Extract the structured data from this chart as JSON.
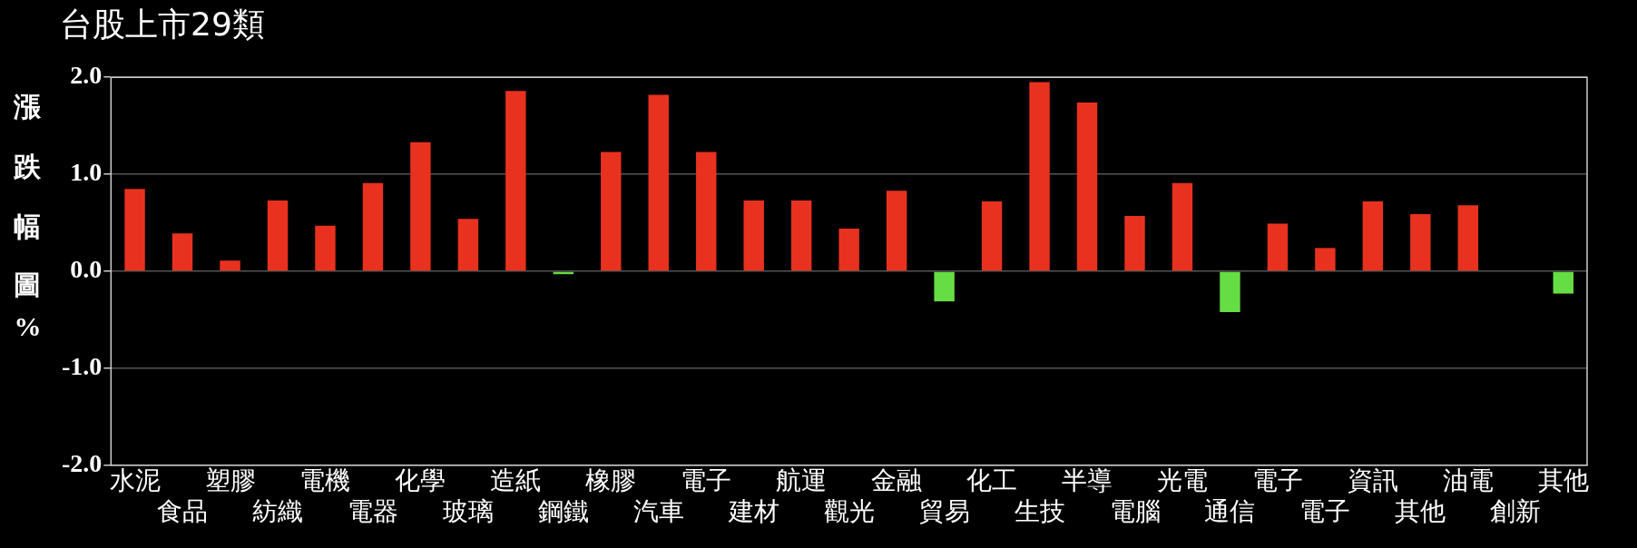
{
  "chart_data": {
    "type": "bar",
    "title": "台股上市29類",
    "ylabel": "漲跌幅圖%",
    "categories": [
      "水泥",
      "食品",
      "塑膠",
      "紡織",
      "電機",
      "電器",
      "化學",
      "玻璃",
      "造紙",
      "鋼鐵",
      "橡膠",
      "汽車",
      "電子",
      "建材",
      "航運",
      "觀光",
      "金融",
      "貿易",
      "化工",
      "生技",
      "半導",
      "電腦",
      "光電",
      "通信",
      "電子",
      "電子",
      "資訊",
      "其他",
      "油電",
      "創新",
      "其他"
    ],
    "values": [
      0.85,
      0.39,
      0.11,
      0.73,
      0.47,
      0.91,
      1.33,
      0.54,
      1.86,
      -0.03,
      1.23,
      1.82,
      1.23,
      0.73,
      0.73,
      0.44,
      0.83,
      -0.31,
      0.72,
      1.95,
      1.74,
      0.57,
      0.91,
      -0.42,
      0.49,
      0.24,
      0.72,
      0.59,
      0.68,
      0,
      -0.23
    ],
    "colors": [
      "#e8321f",
      "#e8321f",
      "#e8321f",
      "#e8321f",
      "#e8321f",
      "#e8321f",
      "#e8321f",
      "#e8321f",
      "#e8321f",
      "#66dd44",
      "#e8321f",
      "#e8321f",
      "#e8321f",
      "#e8321f",
      "#e8321f",
      "#e8321f",
      "#e8321f",
      "#66dd44",
      "#e8321f",
      "#e8321f",
      "#e8321f",
      "#e8321f",
      "#e8321f",
      "#66dd44",
      "#e8321f",
      "#e8321f",
      "#e8321f",
      "#e8321f",
      "#e8321f",
      "#e8321f",
      "#66dd44"
    ],
    "ylim": [
      -2,
      2
    ],
    "yticks": [
      {
        "value": -2,
        "label": "-2.0"
      },
      {
        "value": -1,
        "label": "-1.0"
      },
      {
        "value": 0,
        "label": "0.0"
      },
      {
        "value": 1,
        "label": "1.0"
      },
      {
        "value": 2,
        "label": "2.0"
      }
    ],
    "grid": "y",
    "legend": false
  }
}
